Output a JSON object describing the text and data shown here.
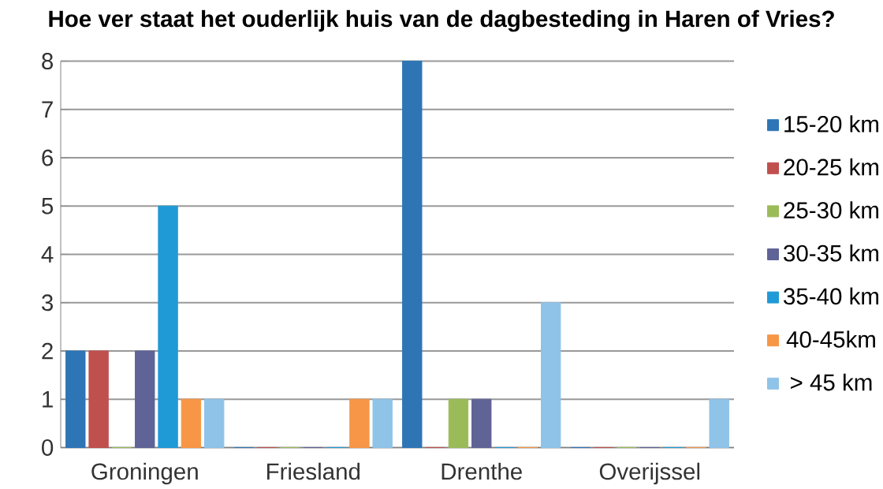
{
  "chart_data": {
    "type": "bar",
    "title": "Hoe ver staat het ouderlijk huis van de dagbesteding in Haren of Vries?",
    "categories": [
      "Groningen",
      "Friesland",
      "Drenthe",
      "Overijssel"
    ],
    "series": [
      {
        "name": "15-20 km",
        "color": "#2e75b6",
        "values": [
          2,
          0,
          8,
          0
        ]
      },
      {
        "name": "20-25 km",
        "color": "#c0504d",
        "values": [
          2,
          0,
          0,
          0
        ]
      },
      {
        "name": "25-30 km",
        "color": "#9bbb59",
        "values": [
          0,
          0,
          1,
          0
        ]
      },
      {
        "name": "30-35 km",
        "color": "#5f6396",
        "values": [
          2,
          0,
          1,
          0
        ]
      },
      {
        "name": "35-40 km",
        "color": "#1f9ad6",
        "values": [
          5,
          0,
          0,
          0
        ]
      },
      {
        "name": "40-45km",
        "color": "#f79646",
        "values": [
          1,
          1,
          0,
          0
        ]
      },
      {
        "name": "> 45 km",
        "color": "#8fc3e8",
        "values": [
          1,
          1,
          3,
          1
        ]
      }
    ],
    "ylim": [
      0,
      8
    ],
    "yticks": [
      0,
      1,
      2,
      3,
      4,
      5,
      6,
      7,
      8
    ],
    "grid": "y",
    "legend": "right"
  }
}
